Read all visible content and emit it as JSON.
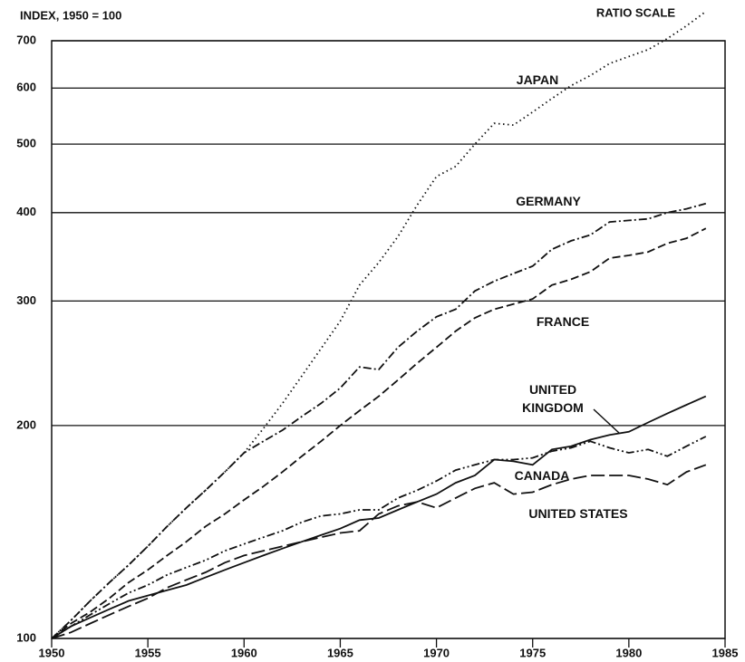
{
  "chart_data": {
    "type": "line",
    "title": "INDEX, 1950 = 100",
    "subtitle": "RATIO SCALE",
    "log_scale": true,
    "grid": true,
    "x": [
      1950,
      1951,
      1952,
      1953,
      1954,
      1955,
      1956,
      1957,
      1958,
      1959,
      1960,
      1961,
      1962,
      1963,
      1964,
      1965,
      1966,
      1967,
      1968,
      1969,
      1970,
      1971,
      1972,
      1973,
      1974,
      1975,
      1976,
      1977,
      1978,
      1979,
      1980,
      1981,
      1982,
      1983,
      1984
    ],
    "xlim": [
      1950,
      1985
    ],
    "xticks": [
      1950,
      1955,
      1960,
      1965,
      1970,
      1975,
      1980,
      1985
    ],
    "ylim": [
      100,
      700
    ],
    "yticks": [
      100,
      200,
      300,
      400,
      500,
      600,
      700
    ],
    "series": [
      {
        "name": "JAPAN",
        "color": "#111111",
        "dash": "1.5,3.5",
        "values": [
          100,
          106,
          113,
          120,
          127,
          135,
          144,
          153,
          162,
          172,
          183,
          198,
          215,
          235,
          257,
          281,
          316,
          340,
          370,
          410,
          450,
          465,
          500,
          535,
          532,
          555,
          580,
          605,
          625,
          650,
          665,
          680,
          705,
          735,
          770
        ]
      },
      {
        "name": "GERMANY",
        "color": "#111111",
        "dash": "9,3,2,3",
        "values": [
          100,
          106,
          113,
          120,
          127,
          135,
          144,
          153,
          162,
          172,
          183,
          190,
          197,
          206,
          215,
          226,
          242,
          240,
          258,
          272,
          285,
          292,
          310,
          320,
          328,
          336,
          355,
          365,
          372,
          388,
          390,
          392,
          400,
          405,
          412
        ]
      },
      {
        "name": "FRANCE",
        "color": "#111111",
        "dash": "9,4",
        "values": [
          100,
          105,
          109,
          114,
          120,
          125,
          131,
          137,
          144,
          150,
          157,
          164,
          172,
          181,
          190,
          200,
          210,
          220,
          232,
          245,
          258,
          272,
          284,
          292,
          297,
          302,
          316,
          322,
          330,
          345,
          348,
          352,
          362,
          368,
          380
        ]
      },
      {
        "name": "UNITED KINGDOM",
        "color": "#111111",
        "dash": "none",
        "values": [
          100,
          104,
          107,
          110,
          113,
          115,
          117,
          119,
          122,
          125,
          128,
          131,
          134,
          137,
          140,
          143,
          147,
          148,
          152,
          156,
          160,
          166,
          170,
          179,
          178,
          176,
          185,
          187,
          191,
          194,
          196,
          202,
          208,
          214,
          220
        ]
      },
      {
        "name": "CANADA",
        "color": "#111111",
        "dash": "9,3,2,3,2,3",
        "values": [
          100,
          104,
          108,
          112,
          116,
          119,
          123,
          126,
          129,
          133,
          136,
          139,
          142,
          146,
          149,
          150,
          152,
          152,
          158,
          162,
          167,
          173,
          176,
          179,
          179,
          180,
          184,
          186,
          190,
          186,
          183,
          185,
          181,
          187,
          193
        ]
      },
      {
        "name": "UNITED STATES",
        "color": "#111111",
        "dash": "15,5",
        "values": [
          100,
          102,
          105,
          108,
          111,
          114,
          118,
          121,
          124,
          128,
          131,
          133,
          135,
          137,
          139,
          141,
          142,
          150,
          154,
          156,
          153,
          158,
          163,
          166,
          160,
          161,
          165,
          168,
          170,
          170,
          170,
          168,
          165,
          172,
          176
        ]
      }
    ]
  }
}
